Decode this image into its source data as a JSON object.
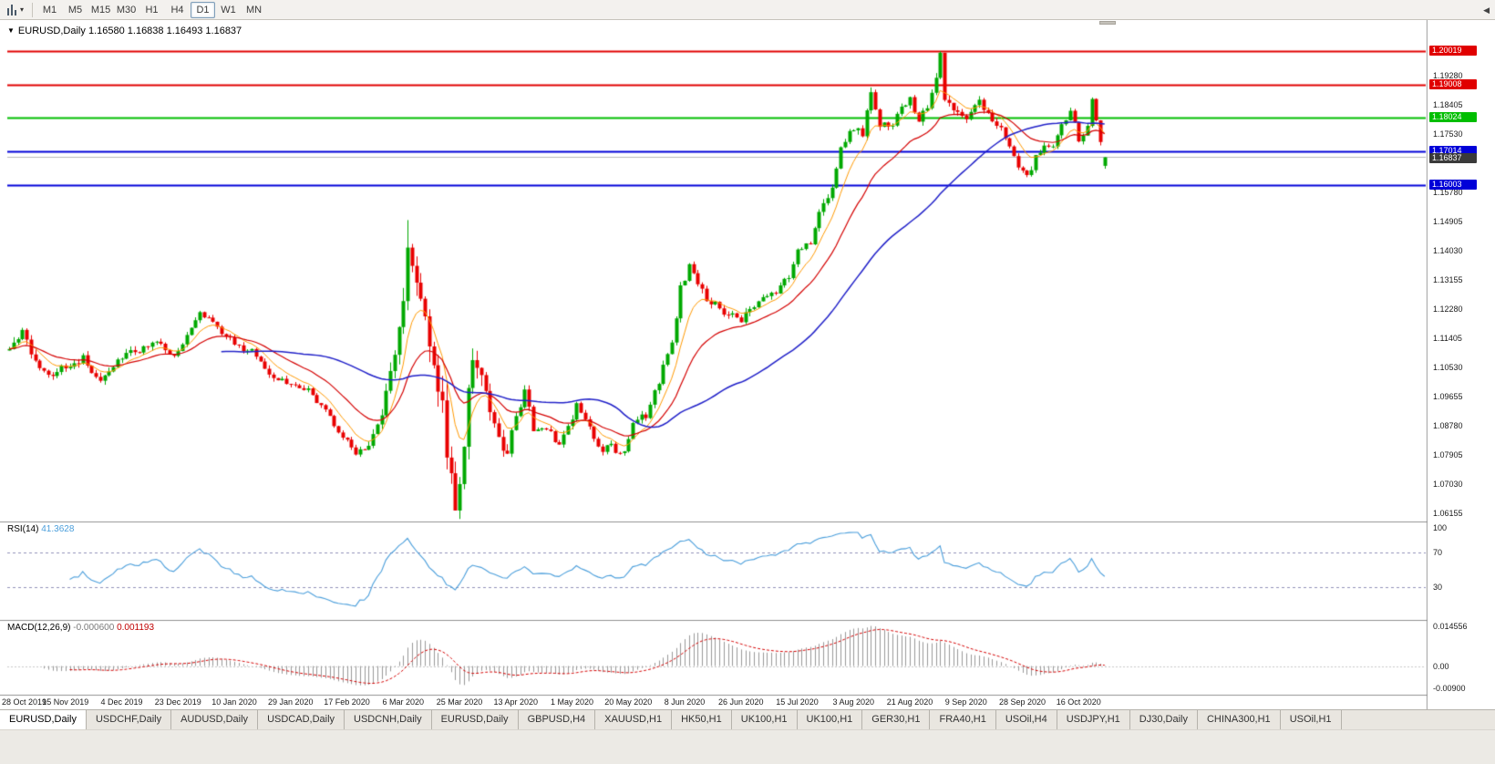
{
  "toolbar": {
    "timeframes": [
      {
        "label": "M1",
        "active": false
      },
      {
        "label": "M5",
        "active": false
      },
      {
        "label": "M15",
        "active": false
      },
      {
        "label": "M30",
        "active": false
      },
      {
        "label": "H1",
        "active": false
      },
      {
        "label": "H4",
        "active": false
      },
      {
        "label": "D1",
        "active": true
      },
      {
        "label": "W1",
        "active": false
      },
      {
        "label": "MN",
        "active": false
      }
    ]
  },
  "chart": {
    "symbol_period": "EURUSD,Daily",
    "ohlc": "1.16580 1.16838 1.16493 1.16837",
    "open": "1.16580",
    "high": "1.16838",
    "low": "1.16493",
    "close": "1.16837"
  },
  "levels": [
    {
      "label": "1.20019",
      "price": 1.20019,
      "color": "#E00000",
      "width": 2
    },
    {
      "label": "1.19008",
      "price": 1.19008,
      "color": "#E00000",
      "width": 2
    },
    {
      "label": "1.18024",
      "price": 1.18024,
      "color": "#00BE00",
      "width": 2
    },
    {
      "label": "1.17014",
      "price": 1.17014,
      "color": "#0000D8",
      "width": 2
    },
    {
      "label": "1.16003",
      "price": 1.16003,
      "color": "#0000D8",
      "width": 2
    }
  ],
  "gray_level": {
    "label": "1.16855",
    "price": 1.16855,
    "color": "#B8B8B8"
  },
  "current_price": {
    "label": "1.16837",
    "price": 1.16837
  },
  "y_axis": {
    "ticks": [
      "1.19280",
      "1.18405",
      "1.17530",
      "1.15780",
      "1.14905",
      "1.14030",
      "1.13155",
      "1.12280",
      "1.11405",
      "1.10530",
      "1.09655",
      "1.08780",
      "1.07905",
      "1.07030",
      "1.06155"
    ]
  },
  "x_axis": {
    "step": 13,
    "dates": [
      "28 Oct 2019",
      "15 Nov 2019",
      "4 Dec 2019",
      "23 Dec 2019",
      "10 Jan 2020",
      "29 Jan 2020",
      "17 Feb 2020",
      "6 Mar 2020",
      "25 Mar 2020",
      "13 Apr 2020",
      "1 May 2020",
      "20 May 2020",
      "8 Jun 2020",
      "26 Jun 2020",
      "15 Jul 2020",
      "3 Aug 2020",
      "21 Aug 2020",
      "9 Sep 2020",
      "28 Sep 2020",
      "16 Oct 2020"
    ]
  },
  "rsi": {
    "name": "RSI(14)",
    "value": "41.3628",
    "scale": [
      {
        "label": "100",
        "value": 100
      },
      {
        "label": "70",
        "value": 70
      },
      {
        "label": "30",
        "value": 30
      }
    ],
    "dashed_levels": [
      70,
      30
    ]
  },
  "macd": {
    "name": "MACD(12,26,9)",
    "value_main": "-0.000600",
    "value_signal": "0.001193",
    "scale": [
      {
        "label": "0.014556",
        "value": 0.0146
      },
      {
        "label": "0.00",
        "value": 0
      },
      {
        "label": "-0.00900",
        "value": -0.009
      }
    ]
  },
  "tabs": [
    {
      "label": "EURUSD,Daily",
      "active": true
    },
    {
      "label": "USDCHF,Daily",
      "active": false
    },
    {
      "label": "AUDUSD,Daily",
      "active": false
    },
    {
      "label": "USDCAD,Daily",
      "active": false
    },
    {
      "label": "USDCNH,Daily",
      "active": false
    },
    {
      "label": "EURUSD,Daily",
      "active": false
    },
    {
      "label": "GBPUSD,H4",
      "active": false
    },
    {
      "label": "XAUUSD,H1",
      "active": false
    },
    {
      "label": "HK50,H1",
      "active": false
    },
    {
      "label": "UK100,H1",
      "active": false
    },
    {
      "label": "UK100,H1",
      "active": false
    },
    {
      "label": "GER30,H1",
      "active": false
    },
    {
      "label": "FRA40,H1",
      "active": false
    },
    {
      "label": "USOil,H4",
      "active": false
    },
    {
      "label": "USDJPY,H1",
      "active": false
    },
    {
      "label": "DJ30,Daily",
      "active": false
    },
    {
      "label": "CHINA300,H1",
      "active": false
    },
    {
      "label": "USOil,H1",
      "active": false
    }
  ],
  "tab_scroll_icon": "◀",
  "colors": {
    "up": "#00A800",
    "down": "#E80000",
    "ma_fast": "#FF9900",
    "ma_mid": "#D40000",
    "ma_slow": "#2020C8",
    "rsi": "#4A9EDB",
    "macd_hist": "#999999",
    "macd_signal": "#D40000",
    "current_badge": "#3A3A3A",
    "separator": "#909090",
    "axis_text": "#1A1A1A"
  },
  "chart_data": {
    "type": "candlestick",
    "symbol": "EURUSD",
    "period": "Daily",
    "candle_count": 254,
    "candle_step": 4.75,
    "y_range": [
      1.0595,
      1.2085
    ],
    "horizontal_levels": [
      1.20019,
      1.19008,
      1.18024,
      1.17014,
      1.16855,
      1.16003
    ],
    "last_candle": {
      "open": 1.1658,
      "high": 1.16838,
      "low": 1.16493,
      "close": 1.16837
    },
    "moving_averages": [
      {
        "period": 8,
        "method": "ema",
        "color_key": "ma_fast"
      },
      {
        "period": 21,
        "method": "ema",
        "color_key": "ma_mid"
      },
      {
        "period": 50,
        "method": "sma",
        "color_key": "ma_slow"
      }
    ],
    "rsi": {
      "period": 14,
      "current": 41.3628
    },
    "macd": {
      "fast": 12,
      "slow": 26,
      "signal": 9,
      "current_main": -0.0006,
      "current_signal": 0.001193
    },
    "price_keypoints": [
      [
        0,
        1.1095,
        0.003
      ],
      [
        3,
        1.115,
        0.0028
      ],
      [
        6,
        1.107,
        0.0025
      ],
      [
        10,
        1.103,
        0.0022
      ],
      [
        13,
        1.1055,
        0.0022
      ],
      [
        17,
        1.1078,
        0.0022
      ],
      [
        20,
        1.1012,
        0.0022
      ],
      [
        23,
        1.104,
        0.002
      ],
      [
        26,
        1.108,
        0.002
      ],
      [
        30,
        1.1108,
        0.002
      ],
      [
        34,
        1.1122,
        0.002
      ],
      [
        38,
        1.1088,
        0.0018
      ],
      [
        41,
        1.115,
        0.0018
      ],
      [
        44,
        1.1218,
        0.0018
      ],
      [
        46,
        1.1205,
        0.0018
      ],
      [
        49,
        1.116,
        0.0018
      ],
      [
        52,
        1.1122,
        0.0018
      ],
      [
        56,
        1.1098,
        0.0018
      ],
      [
        60,
        1.103,
        0.0018
      ],
      [
        65,
        1.1005,
        0.0018
      ],
      [
        69,
        1.0985,
        0.0018
      ],
      [
        73,
        1.092,
        0.0018
      ],
      [
        77,
        1.0845,
        0.0018
      ],
      [
        80,
        1.079,
        0.002
      ],
      [
        83,
        1.082,
        0.0025
      ],
      [
        86,
        1.092,
        0.0035
      ],
      [
        89,
        1.108,
        0.005
      ],
      [
        91,
        1.128,
        0.007
      ],
      [
        92,
        1.144,
        0.0085
      ],
      [
        94,
        1.13,
        0.008
      ],
      [
        96,
        1.118,
        0.008
      ],
      [
        98,
        1.1105,
        0.0085
      ],
      [
        100,
        1.093,
        0.009
      ],
      [
        102,
        1.07,
        0.0085
      ],
      [
        103,
        1.066,
        0.008
      ],
      [
        105,
        1.082,
        0.008
      ],
      [
        107,
        1.108,
        0.007
      ],
      [
        109,
        1.1035,
        0.0055
      ],
      [
        111,
        1.094,
        0.0045
      ],
      [
        113,
        1.083,
        0.004
      ],
      [
        115,
        1.0805,
        0.0035
      ],
      [
        117,
        1.091,
        0.0032
      ],
      [
        119,
        1.0975,
        0.003
      ],
      [
        121,
        1.0872,
        0.0028
      ],
      [
        124,
        1.0878,
        0.0026
      ],
      [
        127,
        1.0822,
        0.0024
      ],
      [
        129,
        1.087,
        0.0024
      ],
      [
        131,
        1.0945,
        0.0024
      ],
      [
        133,
        1.0892,
        0.0022
      ],
      [
        136,
        1.0808,
        0.002
      ],
      [
        139,
        1.0812,
        0.002
      ],
      [
        142,
        1.0795,
        0.002
      ],
      [
        144,
        1.089,
        0.002
      ],
      [
        147,
        1.0905,
        0.002
      ],
      [
        150,
        1.1015,
        0.0022
      ],
      [
        153,
        1.114,
        0.0024
      ],
      [
        155,
        1.1285,
        0.0026
      ],
      [
        157,
        1.1365,
        0.0028
      ],
      [
        159,
        1.13,
        0.0026
      ],
      [
        162,
        1.1245,
        0.0024
      ],
      [
        165,
        1.1222,
        0.0022
      ],
      [
        169,
        1.1192,
        0.0022
      ],
      [
        173,
        1.1252,
        0.002
      ],
      [
        177,
        1.1282,
        0.0018
      ],
      [
        180,
        1.133,
        0.0018
      ],
      [
        182,
        1.14,
        0.002
      ],
      [
        185,
        1.1432,
        0.002
      ],
      [
        187,
        1.152,
        0.0022
      ],
      [
        190,
        1.1595,
        0.0022
      ],
      [
        192,
        1.1705,
        0.0024
      ],
      [
        195,
        1.1772,
        0.0026
      ],
      [
        197,
        1.1762,
        0.0028
      ],
      [
        199,
        1.1868,
        0.0028
      ],
      [
        201,
        1.1782,
        0.0026
      ],
      [
        204,
        1.1792,
        0.0024
      ],
      [
        206,
        1.1838,
        0.0024
      ],
      [
        208,
        1.1852,
        0.0024
      ],
      [
        210,
        1.18,
        0.0024
      ],
      [
        212,
        1.1842,
        0.0024
      ],
      [
        214,
        1.1932,
        0.0026
      ],
      [
        215,
        1.1985,
        0.0028
      ],
      [
        216,
        1.1852,
        0.0026
      ],
      [
        218,
        1.1822,
        0.0022
      ],
      [
        221,
        1.1808,
        0.002
      ],
      [
        224,
        1.1848,
        0.002
      ],
      [
        227,
        1.1792,
        0.002
      ],
      [
        229,
        1.1768,
        0.002
      ],
      [
        231,
        1.1718,
        0.002
      ],
      [
        233,
        1.1662,
        0.002
      ],
      [
        235,
        1.1628,
        0.002
      ],
      [
        237,
        1.1682,
        0.002
      ],
      [
        239,
        1.1722,
        0.0018
      ],
      [
        241,
        1.1712,
        0.0018
      ],
      [
        243,
        1.1782,
        0.0018
      ],
      [
        245,
        1.1822,
        0.0018
      ],
      [
        247,
        1.1738,
        0.0018
      ],
      [
        249,
        1.1772,
        0.0018
      ],
      [
        250,
        1.1858,
        0.0018
      ],
      [
        251,
        1.1795,
        0.0018
      ],
      [
        252,
        1.1722,
        0.0018
      ],
      [
        253,
        1.1684,
        0.0016
      ]
    ],
    "overrides": {
      "92": {
        "high": 1.1495
      },
      "103": {
        "low": 1.0636
      },
      "215": {
        "high": 1.2002
      },
      "253": {
        "open": 1.1658,
        "high": 1.16838,
        "low": 1.16493,
        "close": 1.16837
      }
    }
  }
}
